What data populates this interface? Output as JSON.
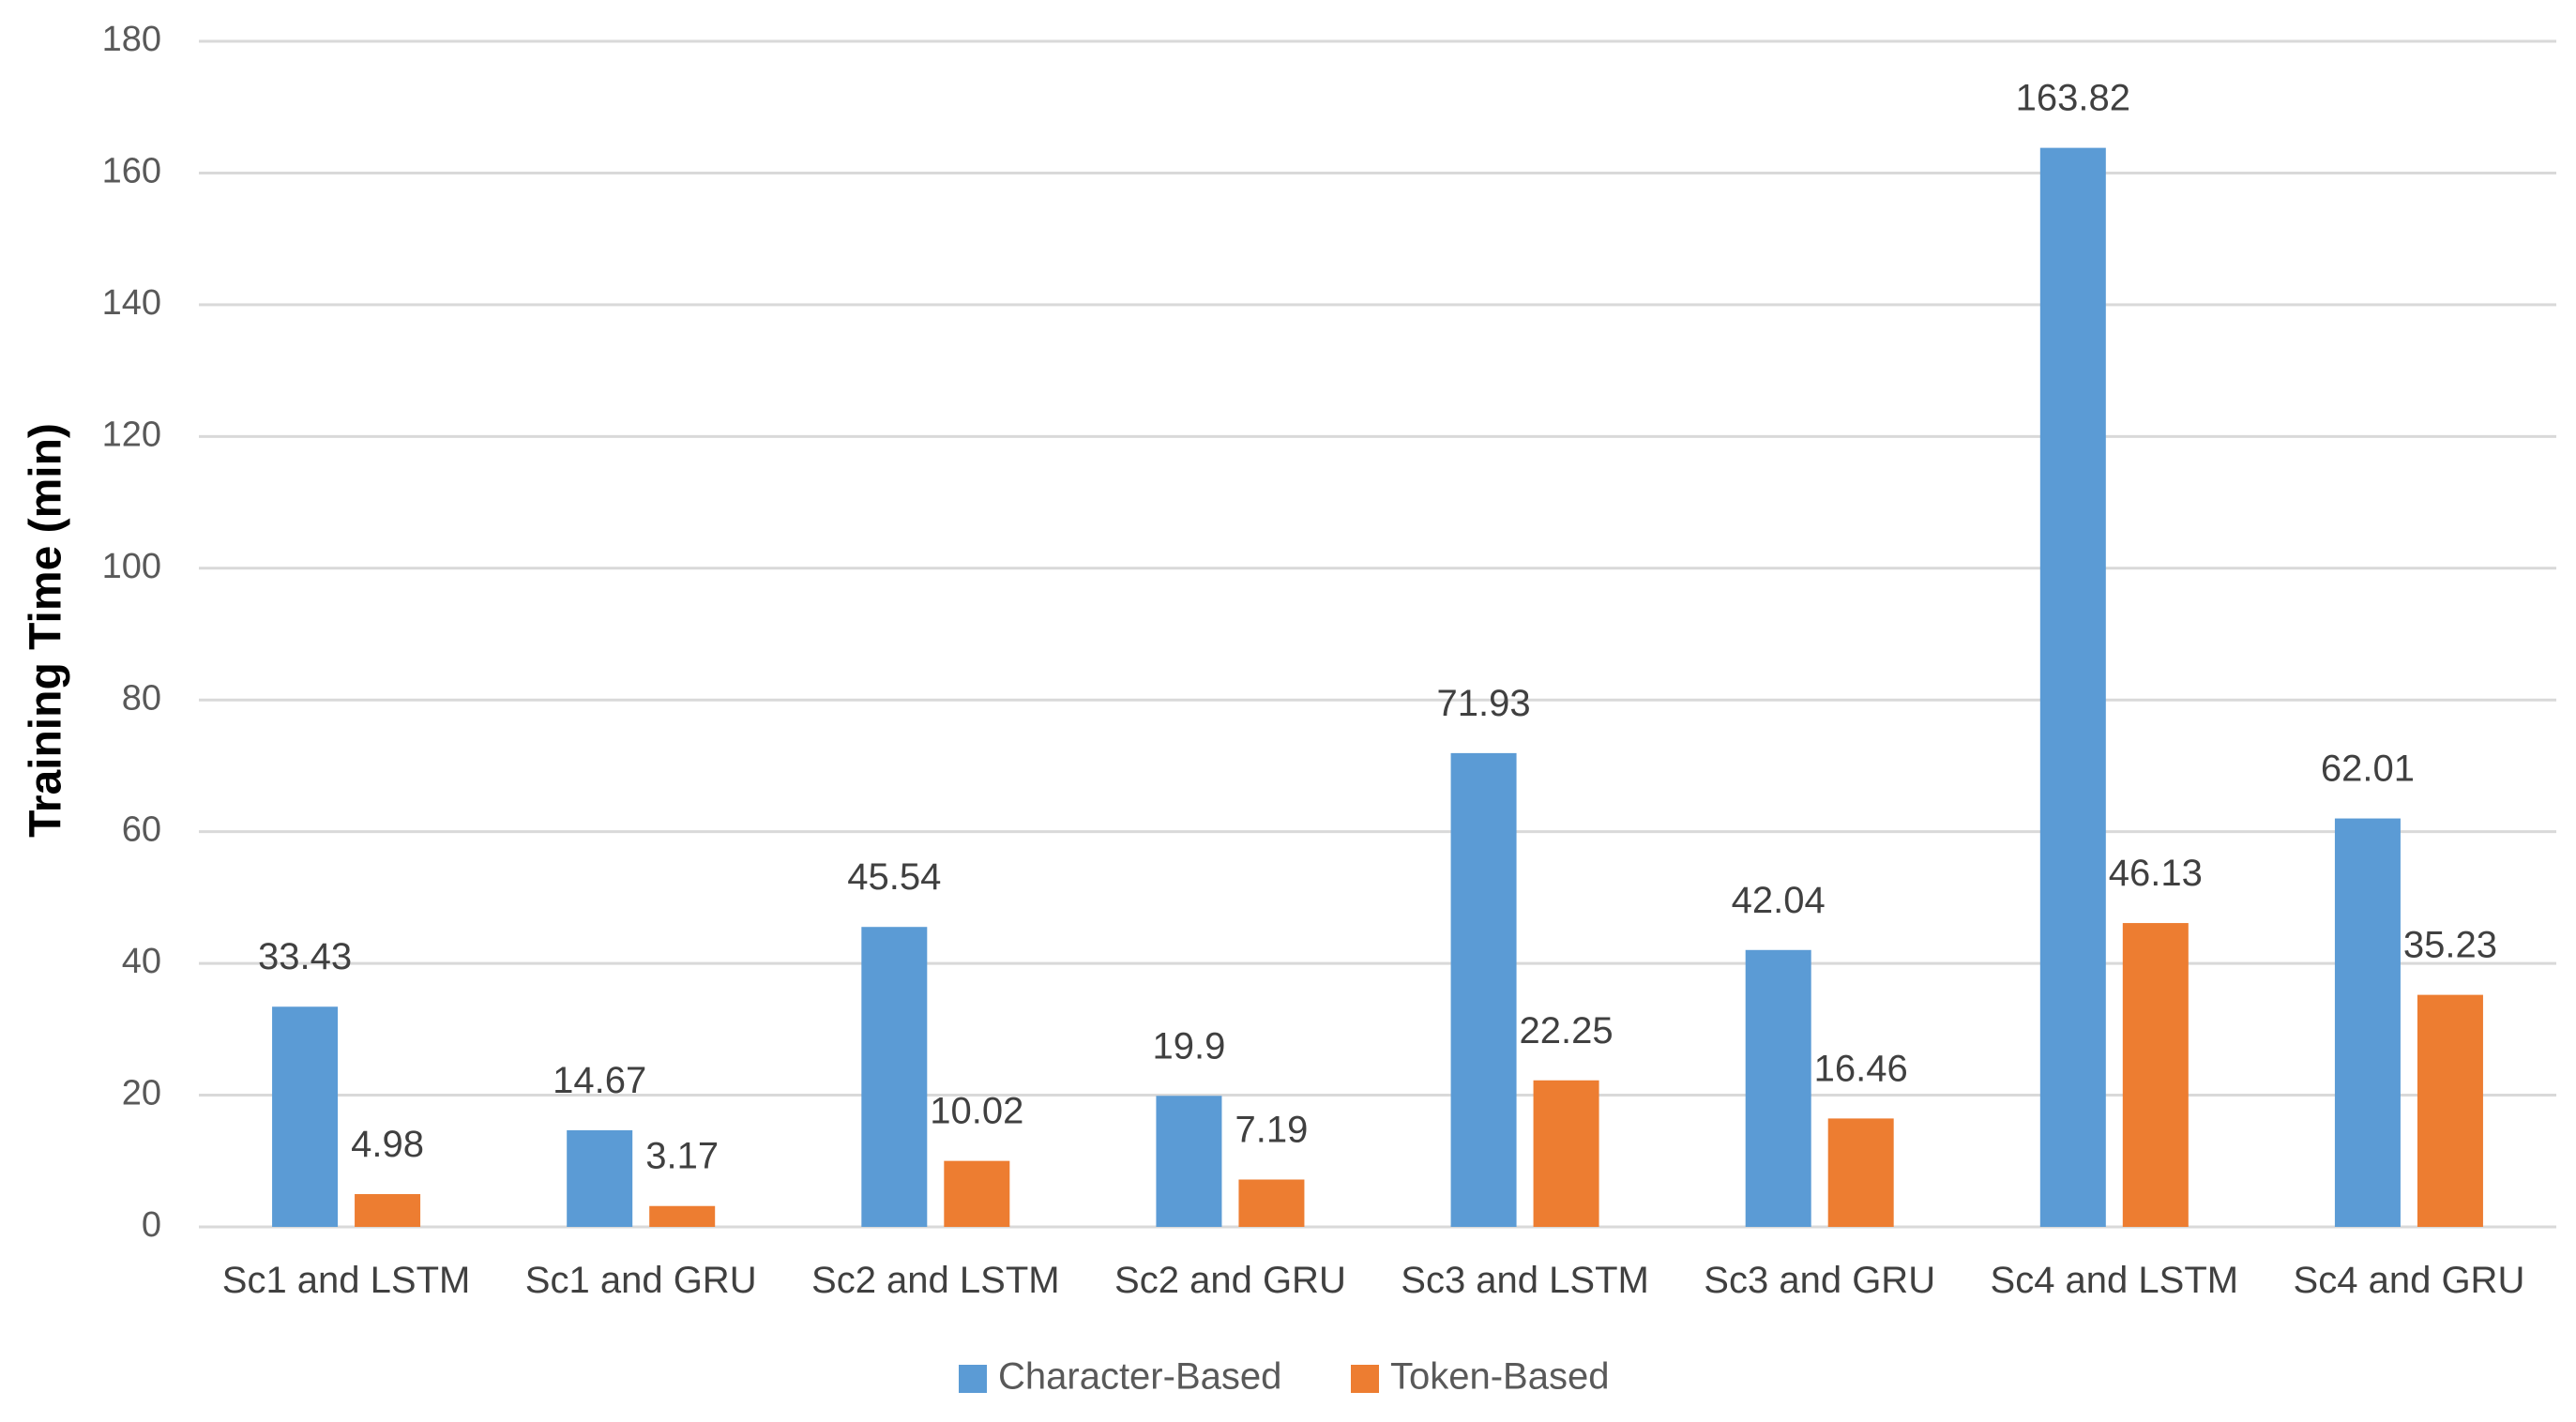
{
  "chart_data": {
    "type": "bar",
    "title": "",
    "xlabel": "",
    "ylabel": "Training Time (min)",
    "ylim": [
      0,
      180
    ],
    "yticks": [
      0,
      20,
      40,
      60,
      80,
      100,
      120,
      140,
      160,
      180
    ],
    "grid": true,
    "legend_position": "bottom",
    "categories": [
      "Sc1 and LSTM",
      "Sc1 and GRU",
      "Sc2 and LSTM",
      "Sc2 and GRU",
      "Sc3 and LSTM",
      "Sc3 and GRU",
      "Sc4 and LSTM",
      "Sc4 and GRU"
    ],
    "series": [
      {
        "name": "Character-Based",
        "color": "#5b9bd5",
        "values": [
          33.43,
          14.67,
          45.54,
          19.9,
          71.93,
          42.04,
          163.82,
          62.01
        ],
        "labels": [
          "33.43",
          "14.67",
          "45.54",
          "19.9",
          "71.93",
          "42.04",
          "163.82",
          "62.01"
        ]
      },
      {
        "name": "Token-Based",
        "color": "#ed7d31",
        "values": [
          4.98,
          3.17,
          10.02,
          7.19,
          22.25,
          16.46,
          46.13,
          35.23
        ],
        "labels": [
          "4.98",
          "3.17",
          "10.02",
          "7.19",
          "22.25",
          "16.46",
          "46.13",
          "35.23"
        ]
      }
    ]
  }
}
